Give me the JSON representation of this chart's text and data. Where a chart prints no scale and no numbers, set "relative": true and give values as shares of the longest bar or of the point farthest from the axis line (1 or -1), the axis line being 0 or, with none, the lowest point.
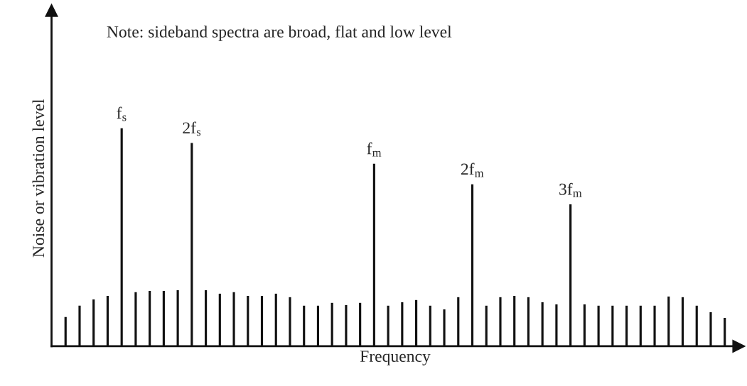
{
  "chart_data": {
    "type": "bar",
    "relative": true,
    "xlabel": "Frequency",
    "ylabel": "Noise or vibration level",
    "color": "#111111",
    "annotations": [
      "Note: sideband spectra are broad, flat and low level",
      {
        "text": "f$_{s}$",
        "y": 1
      },
      {
        "text": "2f$_{s}$",
        "y": 0.932
      },
      {
        "text": "f$_{m}$",
        "y": 0.837
      },
      {
        "text": "2f$_{m}$",
        "y": 0.743
      },
      {
        "text": "3f$_{m}$",
        "y": 0.651
      }
    ],
    "categories": [
      null,
      null,
      null,
      null,
      null,
      null,
      null,
      null,
      null,
      null,
      null,
      null,
      null,
      null,
      null,
      null,
      null,
      null,
      null,
      null,
      null,
      null,
      null,
      null,
      null,
      null,
      null,
      null,
      null,
      null,
      null,
      null,
      null,
      null,
      null,
      null,
      null,
      null,
      null,
      null,
      null,
      null,
      null,
      null,
      null,
      null,
      null,
      null
    ],
    "values": [
      0.134,
      0.186,
      0.215,
      0.231,
      1,
      0.248,
      0.254,
      0.254,
      0.257,
      0.932,
      0.257,
      0.241,
      0.248,
      0.231,
      0.231,
      0.241,
      0.225,
      0.186,
      0.186,
      0.199,
      0.189,
      0.199,
      0.837,
      0.186,
      0.202,
      0.212,
      0.186,
      0.169,
      0.225,
      0.743,
      0.186,
      0.225,
      0.231,
      0.225,
      0.202,
      0.192,
      0.651,
      0.192,
      0.186,
      0.186,
      0.186,
      0.186,
      0.186,
      0.228,
      0.225,
      0.186,
      0.156,
      0.13
    ],
    "grid": false,
    "legend": false,
    "tick_labels": false
  }
}
